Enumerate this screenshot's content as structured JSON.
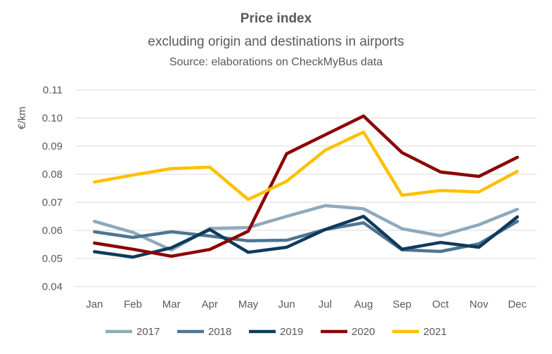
{
  "title": "Price index",
  "subtitle": "excluding origin and destinations in airports",
  "source": "Source: elaborations on CheckMyBus data",
  "chart_data": {
    "type": "line",
    "ylabel": "€/km",
    "xlabel": "",
    "ylim": [
      0.04,
      0.11
    ],
    "yticks": [
      "0.04",
      "0.05",
      "0.06",
      "0.07",
      "0.08",
      "0.09",
      "0.10",
      "0.11"
    ],
    "categories": [
      "Jan",
      "Feb",
      "Mar",
      "Apr",
      "May",
      "Jun",
      "Jul",
      "Aug",
      "Sep",
      "Oct",
      "Nov",
      "Dec"
    ],
    "grid": true,
    "legend_position": "bottom",
    "series": [
      {
        "name": "2017",
        "color": "#8EA9BC",
        "values": [
          0.0632,
          0.0593,
          0.053,
          0.0607,
          0.061,
          0.065,
          0.0688,
          0.0677,
          0.0606,
          0.0581,
          0.062,
          0.0675
        ]
      },
      {
        "name": "2018",
        "color": "#4E7592",
        "values": [
          0.0595,
          0.0575,
          0.0595,
          0.058,
          0.0563,
          0.0565,
          0.0603,
          0.0627,
          0.0531,
          0.0525,
          0.0552,
          0.0632
        ]
      },
      {
        "name": "2019",
        "color": "#0E3A5C",
        "values": [
          0.0524,
          0.0505,
          0.0538,
          0.0603,
          0.0522,
          0.054,
          0.0603,
          0.065,
          0.0533,
          0.0557,
          0.054,
          0.0648
        ]
      },
      {
        "name": "2020",
        "color": "#8B0000",
        "values": [
          0.0555,
          0.0533,
          0.0508,
          0.0532,
          0.0597,
          0.0873,
          0.094,
          0.1007,
          0.0877,
          0.0808,
          0.0792,
          0.086
        ]
      },
      {
        "name": "2021",
        "color": "#FFC000",
        "values": [
          0.0772,
          0.0797,
          0.082,
          0.0825,
          0.071,
          0.0775,
          0.0885,
          0.095,
          0.0725,
          0.0742,
          0.0737,
          0.081
        ]
      }
    ]
  }
}
